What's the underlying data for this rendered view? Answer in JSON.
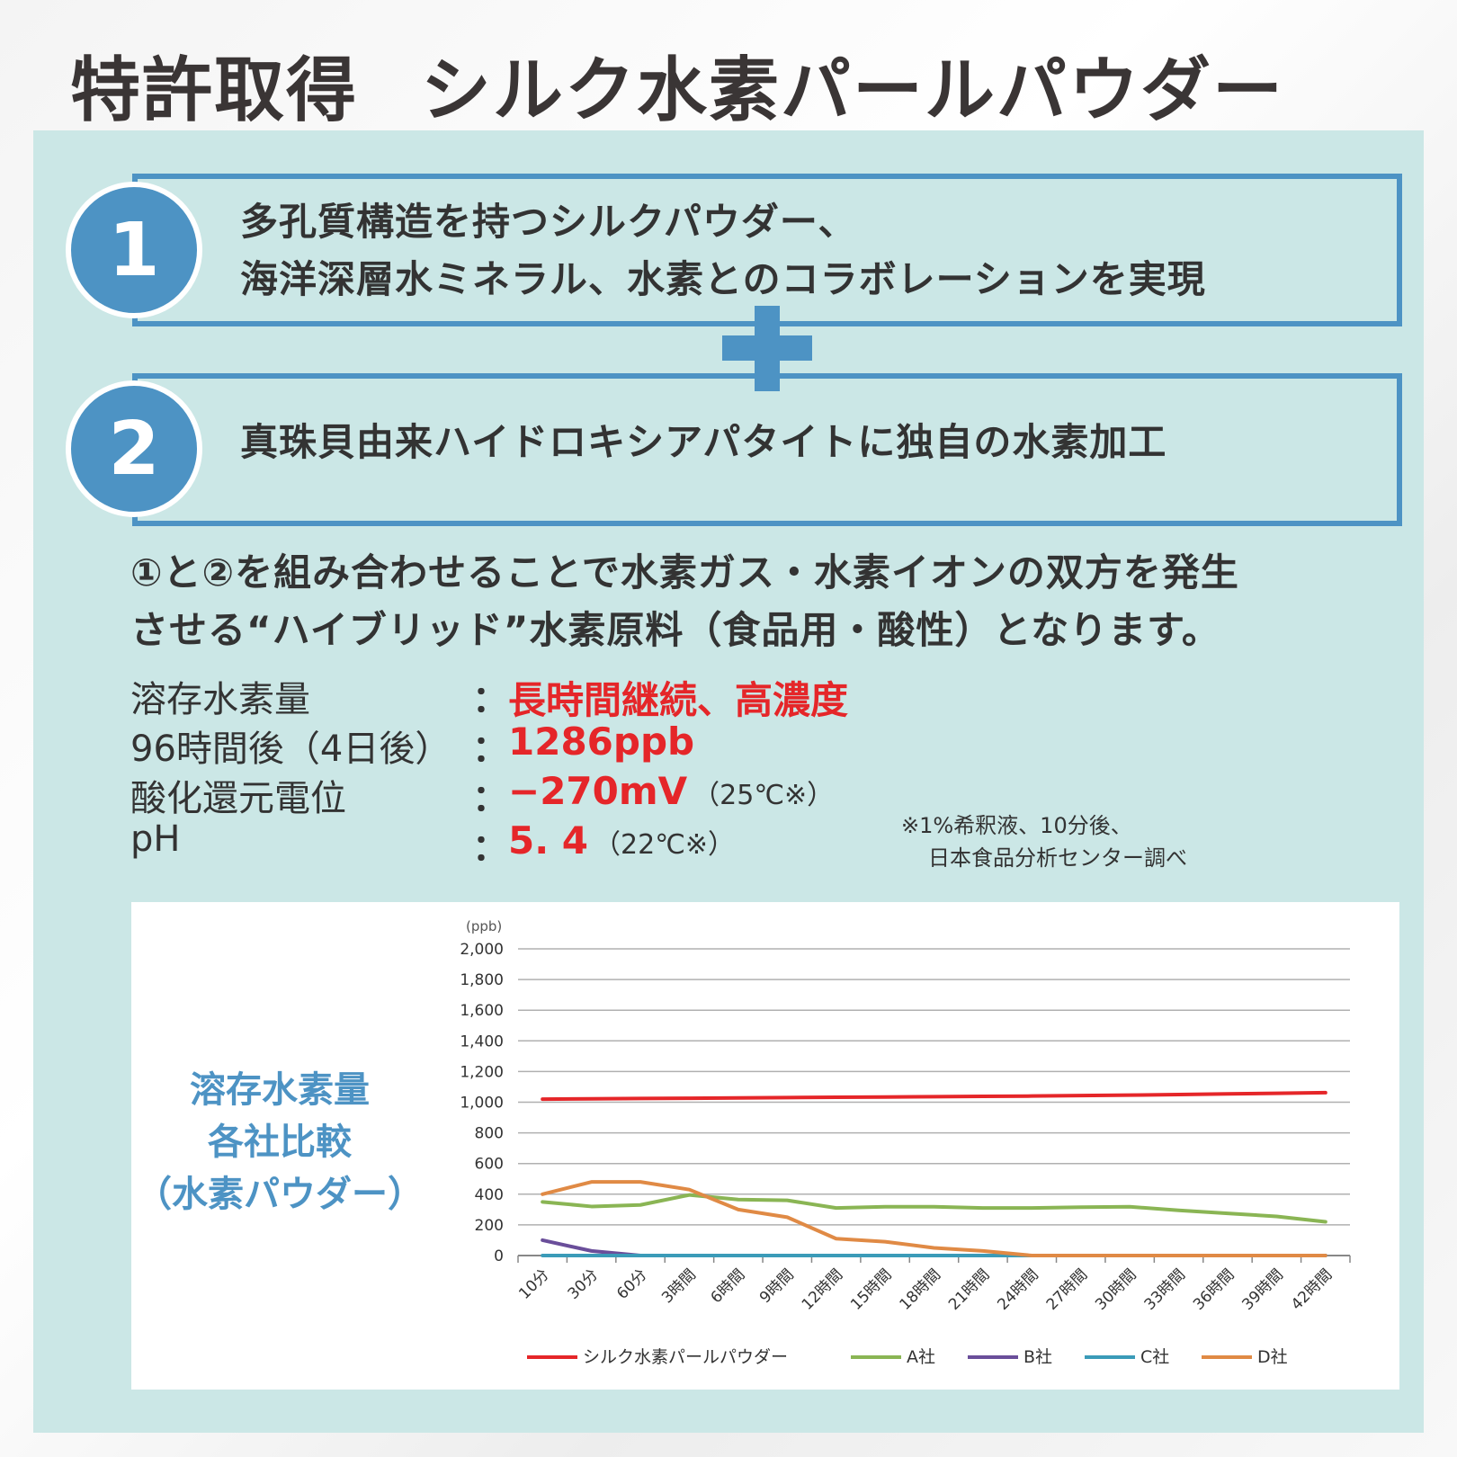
{
  "title": {
    "left": "特許取得",
    "right": "シルク水素パールパウダー"
  },
  "features": [
    {
      "number": "1",
      "line1": "多孔質構造を持つシルクパウダー、",
      "line2": "海洋深層水ミネラル、水素とのコラボレーションを実現"
    },
    {
      "number": "2",
      "line1": "真珠貝由来ハイドロキシアパタイトに独自の水素加工"
    }
  ],
  "summary": {
    "line1": "①と②を組み合わせることで水素ガス・水素イオンの双方を発生",
    "line2": "させる“ハイブリッド”水素原料（食品用・酸性）となります。"
  },
  "specs": [
    {
      "label": "溶存水素量",
      "colon": "：",
      "value": "長時間継続、高濃度",
      "condition": ""
    },
    {
      "label": "96時間後（4日後）",
      "colon": "：",
      "value": "1286ppb",
      "condition": ""
    },
    {
      "label": "酸化還元電位",
      "colon": "：",
      "value": "−270mV",
      "condition": "（25℃※）"
    },
    {
      "label": "pH",
      "colon": "：",
      "value": "5. 4",
      "condition": "（22℃※）"
    }
  ],
  "note": {
    "line1": "※1%希釈液、10分後、",
    "line2": "日本食品分析センター調べ"
  },
  "chart_label": {
    "line1": "溶存水素量",
    "line2": "各社比較",
    "line3": "（水素パウダー）"
  },
  "colors": {
    "accent_blue": "#4d93c4",
    "panel_bg": "#cbe7e6",
    "highlight_red": "#e52629"
  },
  "chart_data": {
    "type": "line",
    "ylabel": "(ppb)",
    "ylim": [
      0,
      2000
    ],
    "yticks": [
      "2,000",
      "1,800",
      "1,600",
      "1,400",
      "1,200",
      "1,000",
      "800",
      "600",
      "400",
      "200",
      "0"
    ],
    "categories": [
      "10分",
      "30分",
      "60分",
      "3時間",
      "6時間",
      "9時間",
      "12時間",
      "15時間",
      "18時間",
      "21時間",
      "24時間",
      "27時間",
      "30時間",
      "33時間",
      "36時間",
      "39時間",
      "42時間"
    ],
    "grid": true,
    "legend_position": "bottom",
    "series": [
      {
        "name": "シルク水素パールパウダー",
        "color": "#e52629",
        "values": [
          1020,
          1022,
          1024,
          1026,
          1028,
          1030,
          1032,
          1034,
          1036,
          1038,
          1040,
          1043,
          1046,
          1050,
          1054,
          1058,
          1062
        ]
      },
      {
        "name": "A社",
        "color": "#8ab554",
        "values": [
          350,
          320,
          330,
          395,
          365,
          360,
          310,
          318,
          318,
          310,
          310,
          315,
          318,
          295,
          275,
          255,
          220
        ]
      },
      {
        "name": "B社",
        "color": "#6a4e9a",
        "values": [
          100,
          30,
          0,
          0,
          0,
          0,
          0,
          0,
          0,
          0,
          0,
          0,
          0,
          0,
          0,
          0,
          0
        ]
      },
      {
        "name": "C社",
        "color": "#3b9bb8",
        "values": [
          0,
          0,
          0,
          0,
          0,
          0,
          0,
          0,
          0,
          0,
          0,
          0,
          0,
          0,
          0,
          0,
          0
        ]
      },
      {
        "name": "D社",
        "color": "#e08a45",
        "values": [
          400,
          480,
          480,
          430,
          300,
          250,
          110,
          90,
          50,
          30,
          0,
          0,
          0,
          0,
          0,
          0,
          0
        ]
      }
    ]
  }
}
